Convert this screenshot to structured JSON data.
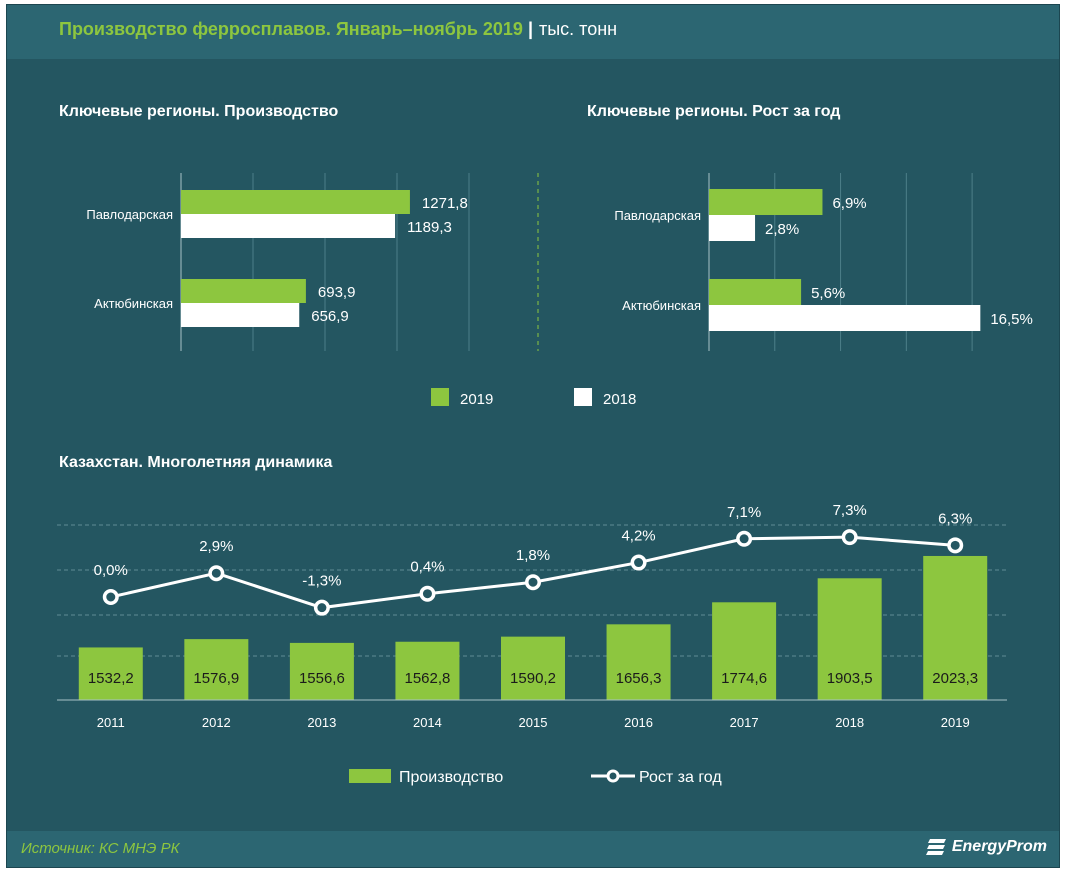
{
  "header": {
    "title": "Производство ферросплавов. Январь–ноябрь 2019",
    "separator": "|",
    "unit": "тыс. тонн"
  },
  "sections": {
    "regions_production": "Ключевые  регионы. Производство",
    "regions_growth": "Ключевые  регионы. Рост за год",
    "kazakhstan": "Казахстан.  Многолетняя  динамика"
  },
  "colors": {
    "background": "#245661",
    "header": "#2c6672",
    "green": "#8dc63f",
    "white": "#ffffff"
  },
  "chart_data": [
    {
      "type": "bar",
      "orientation": "horizontal",
      "categories": [
        "Павлодарская",
        "Актюбинская"
      ],
      "series": [
        {
          "name": "2019",
          "values": [
            1271.8,
            693.9
          ],
          "labels": [
            "1271,8",
            "693,9"
          ]
        },
        {
          "name": "2018",
          "values": [
            1189.3,
            656.9
          ],
          "labels": [
            "1189,3",
            "656,9"
          ]
        }
      ],
      "xlim": [
        0,
        2000
      ],
      "grid": true
    },
    {
      "type": "bar",
      "orientation": "horizontal",
      "categories": [
        "Павлодарская",
        "Актюбинская"
      ],
      "series": [
        {
          "name": "2019",
          "values": [
            6.9,
            5.6
          ],
          "labels": [
            "6,9%",
            "5,6%"
          ]
        },
        {
          "name": "2018",
          "values": [
            2.8,
            16.5
          ],
          "labels": [
            "2,8%",
            "16,5%"
          ]
        }
      ],
      "xlim": [
        0,
        18
      ],
      "grid": true
    },
    {
      "type": "bar+line",
      "categories": [
        "2011",
        "2012",
        "2013",
        "2014",
        "2015",
        "2016",
        "2017",
        "2018",
        "2019"
      ],
      "series": [
        {
          "name": "Производство",
          "type": "bar",
          "values": [
            1532.2,
            1576.9,
            1556.6,
            1562.8,
            1590.2,
            1656.3,
            1774.6,
            1903.5,
            2023.3
          ],
          "labels": [
            "1532,2",
            "1576,9",
            "1556,6",
            "1562,8",
            "1590,2",
            "1656,3",
            "1774,6",
            "1903,5",
            "2023,3"
          ]
        },
        {
          "name": "Рост за год",
          "type": "line",
          "values": [
            0.0,
            2.9,
            -1.3,
            0.4,
            1.8,
            4.2,
            7.1,
            7.3,
            6.3
          ],
          "labels": [
            "0,0%",
            "2,9%",
            "-1,3%",
            "0,4%",
            "1,8%",
            "4,2%",
            "7,1%",
            "7,3%",
            "6,3%"
          ]
        }
      ],
      "grid": true
    }
  ],
  "legends": {
    "top": [
      {
        "label": "2019",
        "color": "#8dc63f"
      },
      {
        "label": "2018",
        "color": "#ffffff"
      }
    ],
    "bottom": [
      {
        "label": "Производство",
        "kind": "bar"
      },
      {
        "label": "Рост за год",
        "kind": "line"
      }
    ]
  },
  "footer": {
    "source": "Источник: КС МНЭ РК",
    "logo": "EnergyProm"
  }
}
